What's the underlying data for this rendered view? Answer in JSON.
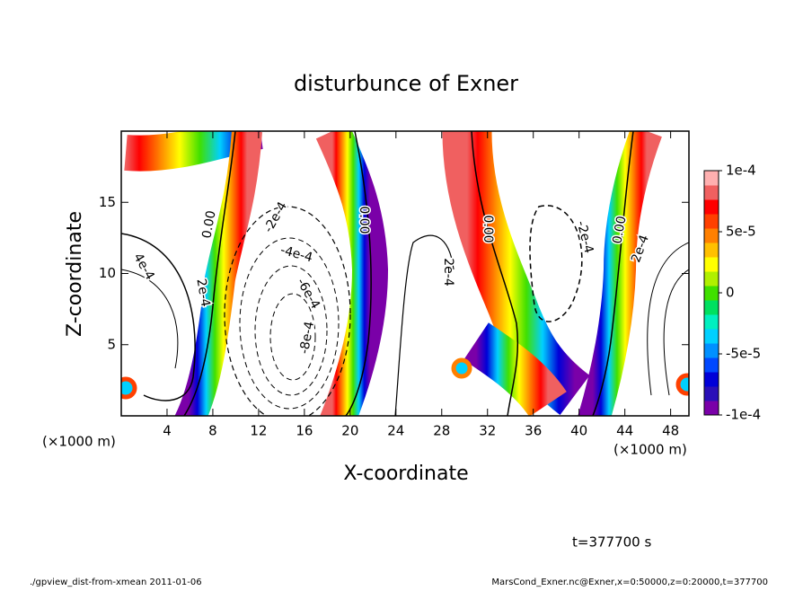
{
  "chart_data": {
    "type": "contour",
    "title": "disturbunce of Exner",
    "x_label": "X-coordinate",
    "y_label": "Z-coordinate",
    "x_unit_label": "(×1000 m)",
    "xlim": [
      0,
      49.6
    ],
    "xticks": [
      4,
      8,
      12,
      16,
      20,
      24,
      28,
      32,
      36,
      40,
      44,
      48
    ],
    "ylim": [
      0,
      20
    ],
    "yticks": [
      5,
      10,
      15
    ],
    "clim": [
      -0.0001,
      0.0001
    ],
    "cticks": [
      {
        "value": 0.0001,
        "label": "1e-4"
      },
      {
        "value": 5e-05,
        "label": "5e-5"
      },
      0,
      {
        "value": -5e-05,
        "label": "-5e-5"
      },
      {
        "value": -0.0001,
        "label": "-1e-4"
      }
    ],
    "colorbar_colors": [
      "#7a00a8",
      "#2a10b8",
      "#0000d8",
      "#0048ff",
      "#0090ff",
      "#00d0ff",
      "#00f0c0",
      "#00e060",
      "#40e000",
      "#b0f000",
      "#ffff00",
      "#ffc000",
      "#ff8000",
      "#ff4000",
      "#ff0000",
      "#f06060",
      "#ffb0b0"
    ],
    "contour_labels": [
      "0.00",
      "0.00",
      "0.00",
      "0.00",
      "2e-4",
      "-2e-4",
      "4e-4",
      "-4e-4",
      "-6e-4",
      "-8e-4",
      "2e-4",
      "-2e-4",
      "2e-4"
    ],
    "time_label": "t=377700 s",
    "footer_left": "./gpview_dist-from-xmean  2011-01-06",
    "footer_right": "MarsCond_Exner.nc@Exner,x=0:50000,z=0:20000,t=377700"
  }
}
